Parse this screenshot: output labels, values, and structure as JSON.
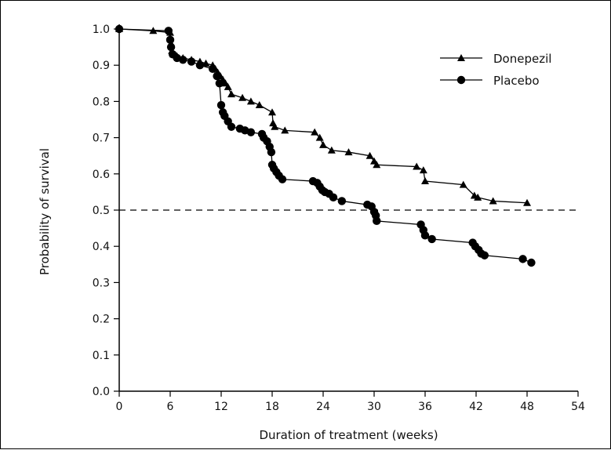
{
  "chart_data": {
    "type": "line",
    "title": "",
    "xlabel": "Duration of treatment (weeks)",
    "ylabel": "Probability of survival",
    "xlim": [
      0,
      54
    ],
    "ylim": [
      0.0,
      1.0
    ],
    "x_ticks": [
      0,
      6,
      12,
      18,
      24,
      30,
      36,
      42,
      48,
      54
    ],
    "y_ticks": [
      "0.0",
      "0.1",
      "0.2",
      "0.3",
      "0.4",
      "0.5",
      "0.6",
      "0.7",
      "0.8",
      "0.9",
      "1.0"
    ],
    "reference_line": {
      "y": 0.5,
      "style": "dashed"
    },
    "grid": false,
    "legend_position": "top-right",
    "series": [
      {
        "name": "Donepezil",
        "marker": "triangle",
        "color": "#000000",
        "points": [
          [
            0,
            1.0
          ],
          [
            4,
            0.995
          ],
          [
            6,
            0.99
          ],
          [
            6.1,
            0.96
          ],
          [
            6.2,
            0.94
          ],
          [
            6.4,
            0.93
          ],
          [
            6.8,
            0.925
          ],
          [
            7.5,
            0.92
          ],
          [
            8.5,
            0.915
          ],
          [
            9.5,
            0.91
          ],
          [
            10.2,
            0.905
          ],
          [
            11,
            0.9
          ],
          [
            11.3,
            0.89
          ],
          [
            11.6,
            0.88
          ],
          [
            11.9,
            0.87
          ],
          [
            12.2,
            0.86
          ],
          [
            12.5,
            0.85
          ],
          [
            12.8,
            0.84
          ],
          [
            13.2,
            0.82
          ],
          [
            14.5,
            0.81
          ],
          [
            15.5,
            0.8
          ],
          [
            16.5,
            0.79
          ],
          [
            18,
            0.77
          ],
          [
            18.1,
            0.74
          ],
          [
            18.3,
            0.73
          ],
          [
            19.5,
            0.72
          ],
          [
            23,
            0.715
          ],
          [
            23.6,
            0.7
          ],
          [
            24,
            0.68
          ],
          [
            25,
            0.665
          ],
          [
            27,
            0.66
          ],
          [
            29.5,
            0.65
          ],
          [
            30,
            0.635
          ],
          [
            30.3,
            0.625
          ],
          [
            35,
            0.62
          ],
          [
            35.8,
            0.61
          ],
          [
            36,
            0.58
          ],
          [
            40.5,
            0.57
          ],
          [
            41.8,
            0.54
          ],
          [
            42.2,
            0.535
          ],
          [
            44,
            0.525
          ],
          [
            48,
            0.52
          ]
        ]
      },
      {
        "name": "Placebo",
        "marker": "circle",
        "color": "#000000",
        "points": [
          [
            0,
            1.0
          ],
          [
            5.8,
            0.995
          ],
          [
            6.0,
            0.97
          ],
          [
            6.1,
            0.95
          ],
          [
            6.3,
            0.93
          ],
          [
            6.8,
            0.92
          ],
          [
            7.5,
            0.915
          ],
          [
            8.5,
            0.91
          ],
          [
            9.5,
            0.9
          ],
          [
            11,
            0.89
          ],
          [
            11.5,
            0.87
          ],
          [
            11.8,
            0.85
          ],
          [
            12,
            0.79
          ],
          [
            12.2,
            0.77
          ],
          [
            12.4,
            0.76
          ],
          [
            12.8,
            0.745
          ],
          [
            13.2,
            0.73
          ],
          [
            14.2,
            0.725
          ],
          [
            14.8,
            0.72
          ],
          [
            15.5,
            0.715
          ],
          [
            16.8,
            0.71
          ],
          [
            17,
            0.7
          ],
          [
            17.4,
            0.69
          ],
          [
            17.7,
            0.675
          ],
          [
            17.9,
            0.66
          ],
          [
            18,
            0.625
          ],
          [
            18.2,
            0.615
          ],
          [
            18.5,
            0.605
          ],
          [
            18.8,
            0.595
          ],
          [
            19.2,
            0.585
          ],
          [
            22.8,
            0.58
          ],
          [
            23.3,
            0.575
          ],
          [
            23.6,
            0.565
          ],
          [
            23.9,
            0.555
          ],
          [
            24.2,
            0.55
          ],
          [
            24.7,
            0.545
          ],
          [
            25.2,
            0.535
          ],
          [
            26.2,
            0.525
          ],
          [
            29.2,
            0.515
          ],
          [
            29.7,
            0.51
          ],
          [
            30,
            0.495
          ],
          [
            30.2,
            0.485
          ],
          [
            30.3,
            0.47
          ],
          [
            35.5,
            0.46
          ],
          [
            35.8,
            0.445
          ],
          [
            36,
            0.43
          ],
          [
            36.8,
            0.42
          ],
          [
            41.6,
            0.41
          ],
          [
            41.9,
            0.4
          ],
          [
            42.3,
            0.39
          ],
          [
            42.6,
            0.38
          ],
          [
            43,
            0.375
          ],
          [
            47.5,
            0.365
          ],
          [
            48.5,
            0.355
          ]
        ]
      }
    ]
  }
}
